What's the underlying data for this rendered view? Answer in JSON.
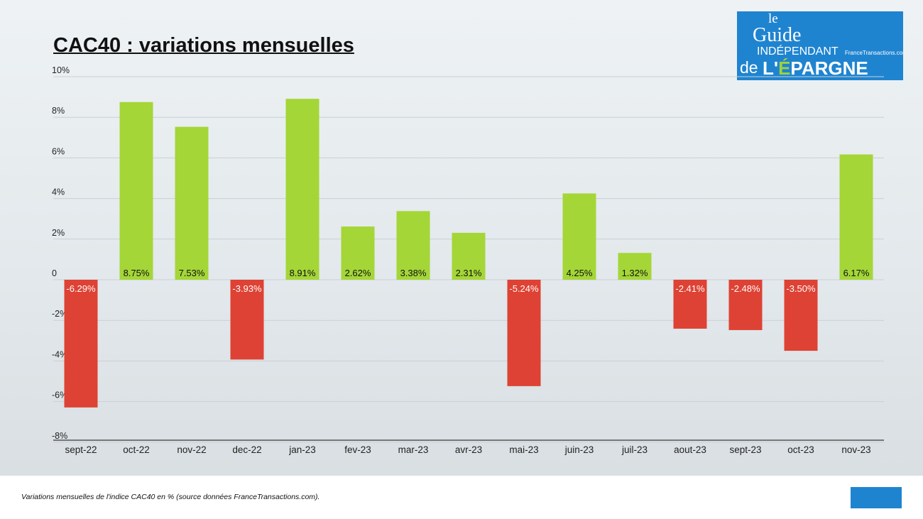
{
  "title": "CAC40 : variations mensuelles",
  "footnote": "Variations mensuelles de l'indice CAC40 en % (source données FranceTransactions.com).",
  "logo": {
    "le": "le",
    "guide": "Guide",
    "independant": "INDÉPENDANT",
    "de": "de",
    "epargne_prefix": "L'",
    "epargne_e": "É",
    "epargne_rest": "PARGNE",
    "site": "FranceTransactions.com"
  },
  "colors": {
    "positive": "#a4d637",
    "negative": "#de4234",
    "logo_blue": "#1f84d0"
  },
  "chart_data": {
    "type": "bar",
    "title": "CAC40 : variations mensuelles",
    "categories": [
      "sept-22",
      "oct-22",
      "nov-22",
      "dec-22",
      "jan-23",
      "fev-23",
      "mar-23",
      "avr-23",
      "mai-23",
      "juin-23",
      "juil-23",
      "aout-23",
      "sept-23",
      "oct-23",
      "nov-23"
    ],
    "values": [
      -6.29,
      8.75,
      7.53,
      -3.93,
      8.91,
      2.62,
      3.38,
      2.31,
      -5.24,
      4.25,
      1.32,
      -2.41,
      -2.48,
      -3.5,
      6.17
    ],
    "data_labels": [
      "-6.29%",
      "8.75%",
      "7.53%",
      "-3.93%",
      "8.91%",
      "2.62%",
      "3.38%",
      "2.31%",
      "-5.24%",
      "4.25%",
      "1.32%",
      "-2.41%",
      "-2.48%",
      "-3.50%",
      "6.17%"
    ],
    "yticks": [
      10,
      8,
      6,
      4,
      2,
      0,
      -2,
      -4,
      -6,
      -8
    ],
    "ytick_labels": [
      "10%",
      "8%",
      "6%",
      "4%",
      "2%",
      "0",
      "-2%",
      "-4%",
      "-6%",
      "-8%"
    ],
    "ylim": [
      -8,
      10
    ],
    "grid": true,
    "xlabel": "",
    "ylabel": ""
  }
}
